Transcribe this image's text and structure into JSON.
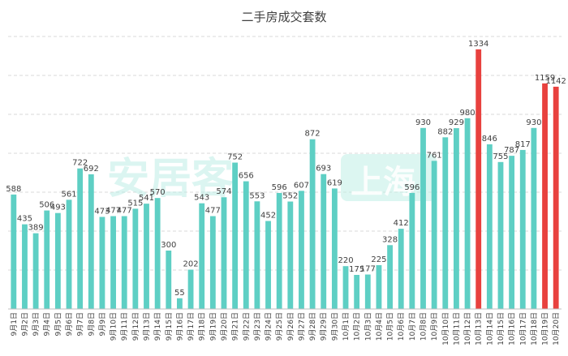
{
  "chart_data": {
    "type": "bar",
    "title": "二手房成交套数",
    "xlabel": "",
    "ylabel": "",
    "ylim": [
      0,
      1400
    ],
    "grid": true,
    "categories": [
      "9月1日",
      "9月2日",
      "9月3日",
      "9月4日",
      "9月5日",
      "9月6日",
      "9月7日",
      "9月8日",
      "9月9日",
      "9月10日",
      "9月11日",
      "9月12日",
      "9月13日",
      "9月14日",
      "9月15日",
      "9月16日",
      "9月17日",
      "9月18日",
      "9月19日",
      "9月20日",
      "9月21日",
      "9月22日",
      "9月23日",
      "9月24日",
      "9月25日",
      "9月26日",
      "9月27日",
      "9月28日",
      "9月29日",
      "9月30日",
      "10月1日",
      "10月2日",
      "10月3日",
      "10月4日",
      "10月5日",
      "10月6日",
      "10月7日",
      "10月8日",
      "10月9日",
      "10月10日",
      "10月11日",
      "10月12日",
      "10月13日",
      "10月14日",
      "10月15日",
      "10月16日",
      "10月17日",
      "10月18日",
      "10月19日",
      "10月20日"
    ],
    "values": [
      588,
      435,
      389,
      506,
      493,
      561,
      722,
      692,
      473,
      477,
      477,
      515,
      541,
      570,
      300,
      55,
      202,
      543,
      477,
      574,
      752,
      656,
      553,
      452,
      596,
      552,
      607,
      872,
      693,
      619,
      220,
      175,
      177,
      225,
      328,
      412,
      596,
      930,
      761,
      882,
      929,
      980,
      1334,
      846,
      755,
      787,
      817,
      930,
      1159,
      1142
    ],
    "highlight_indices": [
      42,
      48,
      49
    ],
    "colors": {
      "normal": "#5ecfc4",
      "highlight": "#e8413e"
    }
  },
  "watermark": {
    "text": "安居客",
    "badge": "上海"
  }
}
